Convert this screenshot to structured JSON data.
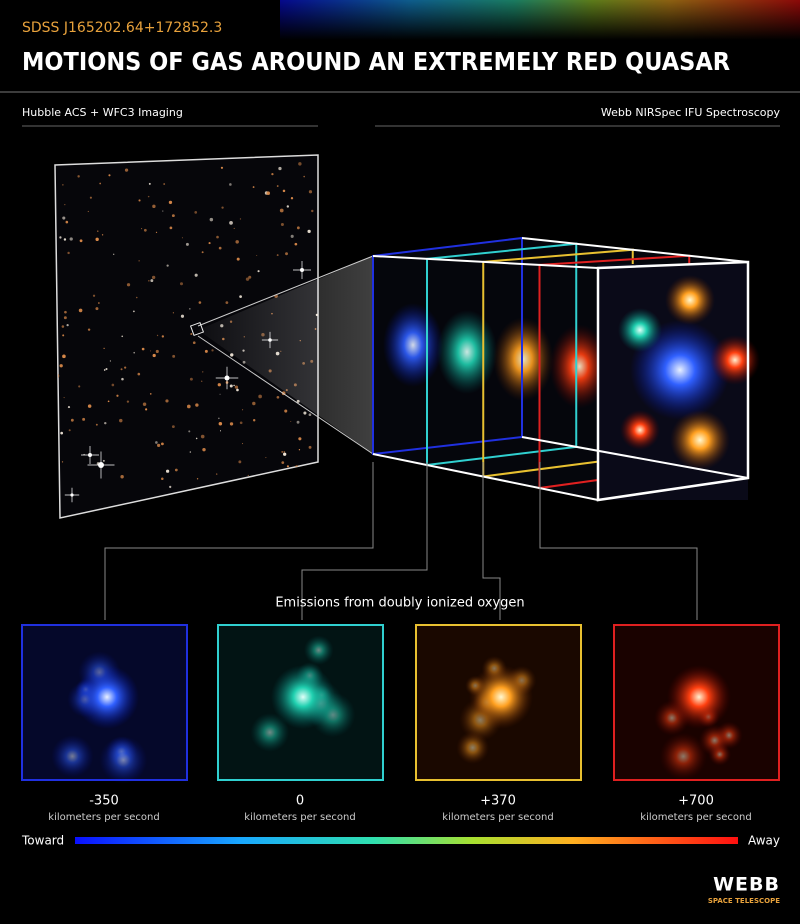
{
  "header": {
    "subtitle": "SDSS J165202.64+172852.3",
    "title": "MOTIONS OF GAS AROUND AN EXTREMELY RED QUASAR"
  },
  "left_label": "Hubble ACS + WFC3 Imaging",
  "right_label": "Webb NIRSpec IFU Spectroscopy",
  "emissions_label": "Emissions from doubly ionized oxygen",
  "panels": [
    {
      "velocity": "-350",
      "unit": "kilometers per second"
    },
    {
      "velocity": "0",
      "unit": "kilometers per second"
    },
    {
      "velocity": "+370",
      "unit": "kilometers per second"
    },
    {
      "velocity": "+700",
      "unit": "kilometers per second"
    }
  ],
  "scale": {
    "left": "Toward",
    "right": "Away"
  },
  "logo": {
    "name": "WEBB",
    "tagline": "SPACE TELESCOPE"
  }
}
